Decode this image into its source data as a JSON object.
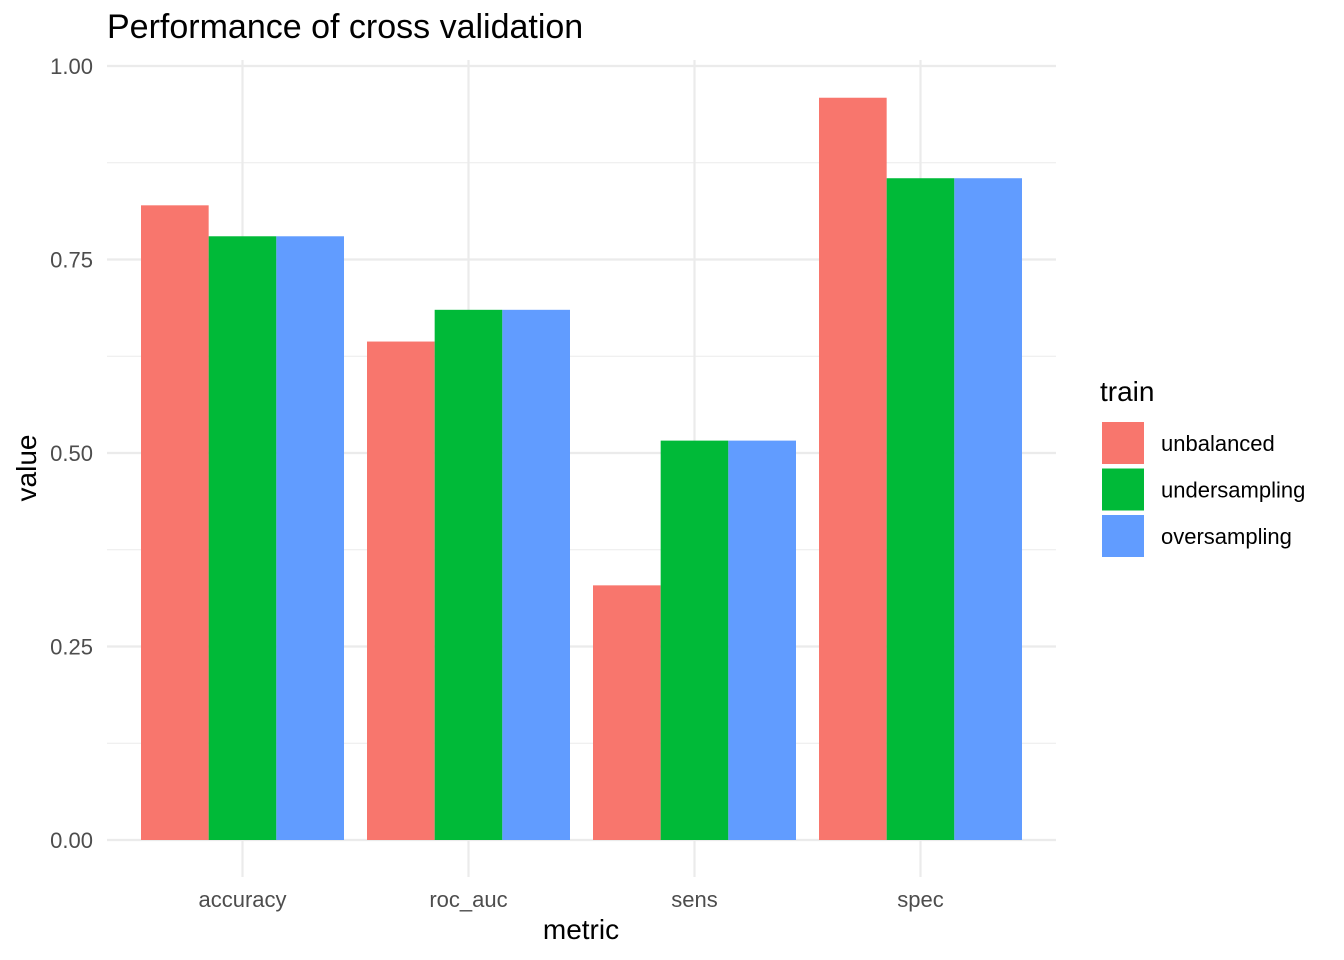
{
  "chart_data": {
    "type": "bar",
    "title": "Performance of cross validation",
    "xlabel": "metric",
    "ylabel": "value",
    "ylim": [
      0,
      1
    ],
    "yticks": [
      "0.00",
      "0.25",
      "0.50",
      "0.75",
      "1.00"
    ],
    "categories": [
      "accuracy",
      "roc_auc",
      "sens",
      "spec"
    ],
    "legend_title": "train",
    "legend_position": "right",
    "grid": true,
    "series": [
      {
        "name": "unbalanced",
        "color": "#F8766D",
        "values": [
          0.82,
          0.644,
          0.329,
          0.959
        ]
      },
      {
        "name": "undersampling",
        "color": "#00BA38",
        "values": [
          0.78,
          0.685,
          0.516,
          0.855
        ]
      },
      {
        "name": "oversampling",
        "color": "#619CFF",
        "values": [
          0.78,
          0.685,
          0.516,
          0.855
        ]
      }
    ]
  }
}
